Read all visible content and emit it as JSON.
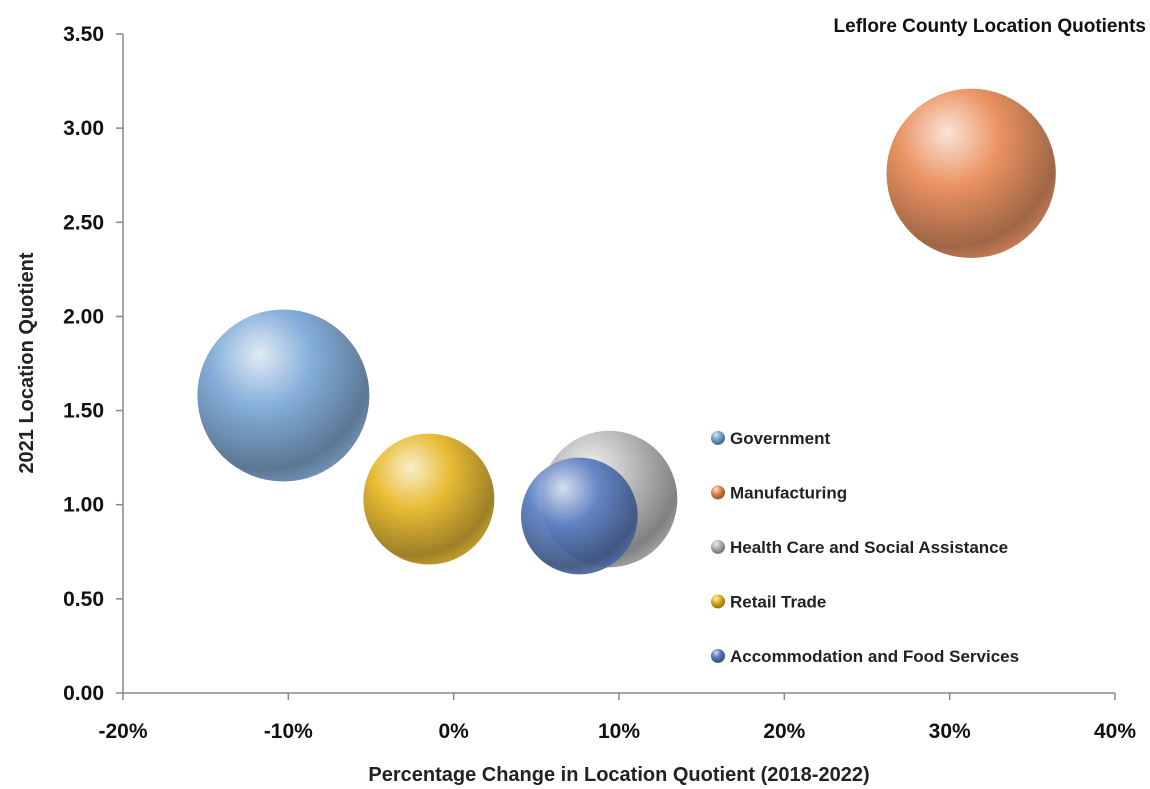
{
  "chart_data": {
    "type": "bubble",
    "title": "Leflore County Location Quotients",
    "xlabel": "Percentage Change in Location Quotient (2018-2022)",
    "ylabel": "2021 Location Quotient",
    "xlim": [
      -20,
      40
    ],
    "ylim": [
      0,
      3.5
    ],
    "x_ticks": [
      "-20%",
      "-10%",
      "0%",
      "10%",
      "20%",
      "30%",
      "40%"
    ],
    "y_ticks": [
      "0.00",
      "0.50",
      "1.00",
      "1.50",
      "2.00",
      "2.50",
      "3.00",
      "3.50"
    ],
    "grid": false,
    "legend_position": "right",
    "series": [
      {
        "name": "Government",
        "x": -10.3,
        "y": 1.58,
        "size": 1.0,
        "color": "#7aa7d6"
      },
      {
        "name": "Manufacturing",
        "x": 31.3,
        "y": 2.76,
        "size": 0.97,
        "color": "#e98a56"
      },
      {
        "name": "Health Care and Social Assistance",
        "x": 9.4,
        "y": 1.03,
        "size": 0.63,
        "color": "#b7b7b7"
      },
      {
        "name": "Retail Trade",
        "x": -1.5,
        "y": 1.03,
        "size": 0.58,
        "color": "#e6b623"
      },
      {
        "name": "Accommodation and Food Services",
        "x": 7.6,
        "y": 0.94,
        "size": 0.46,
        "color": "#5b7fc4"
      }
    ]
  }
}
